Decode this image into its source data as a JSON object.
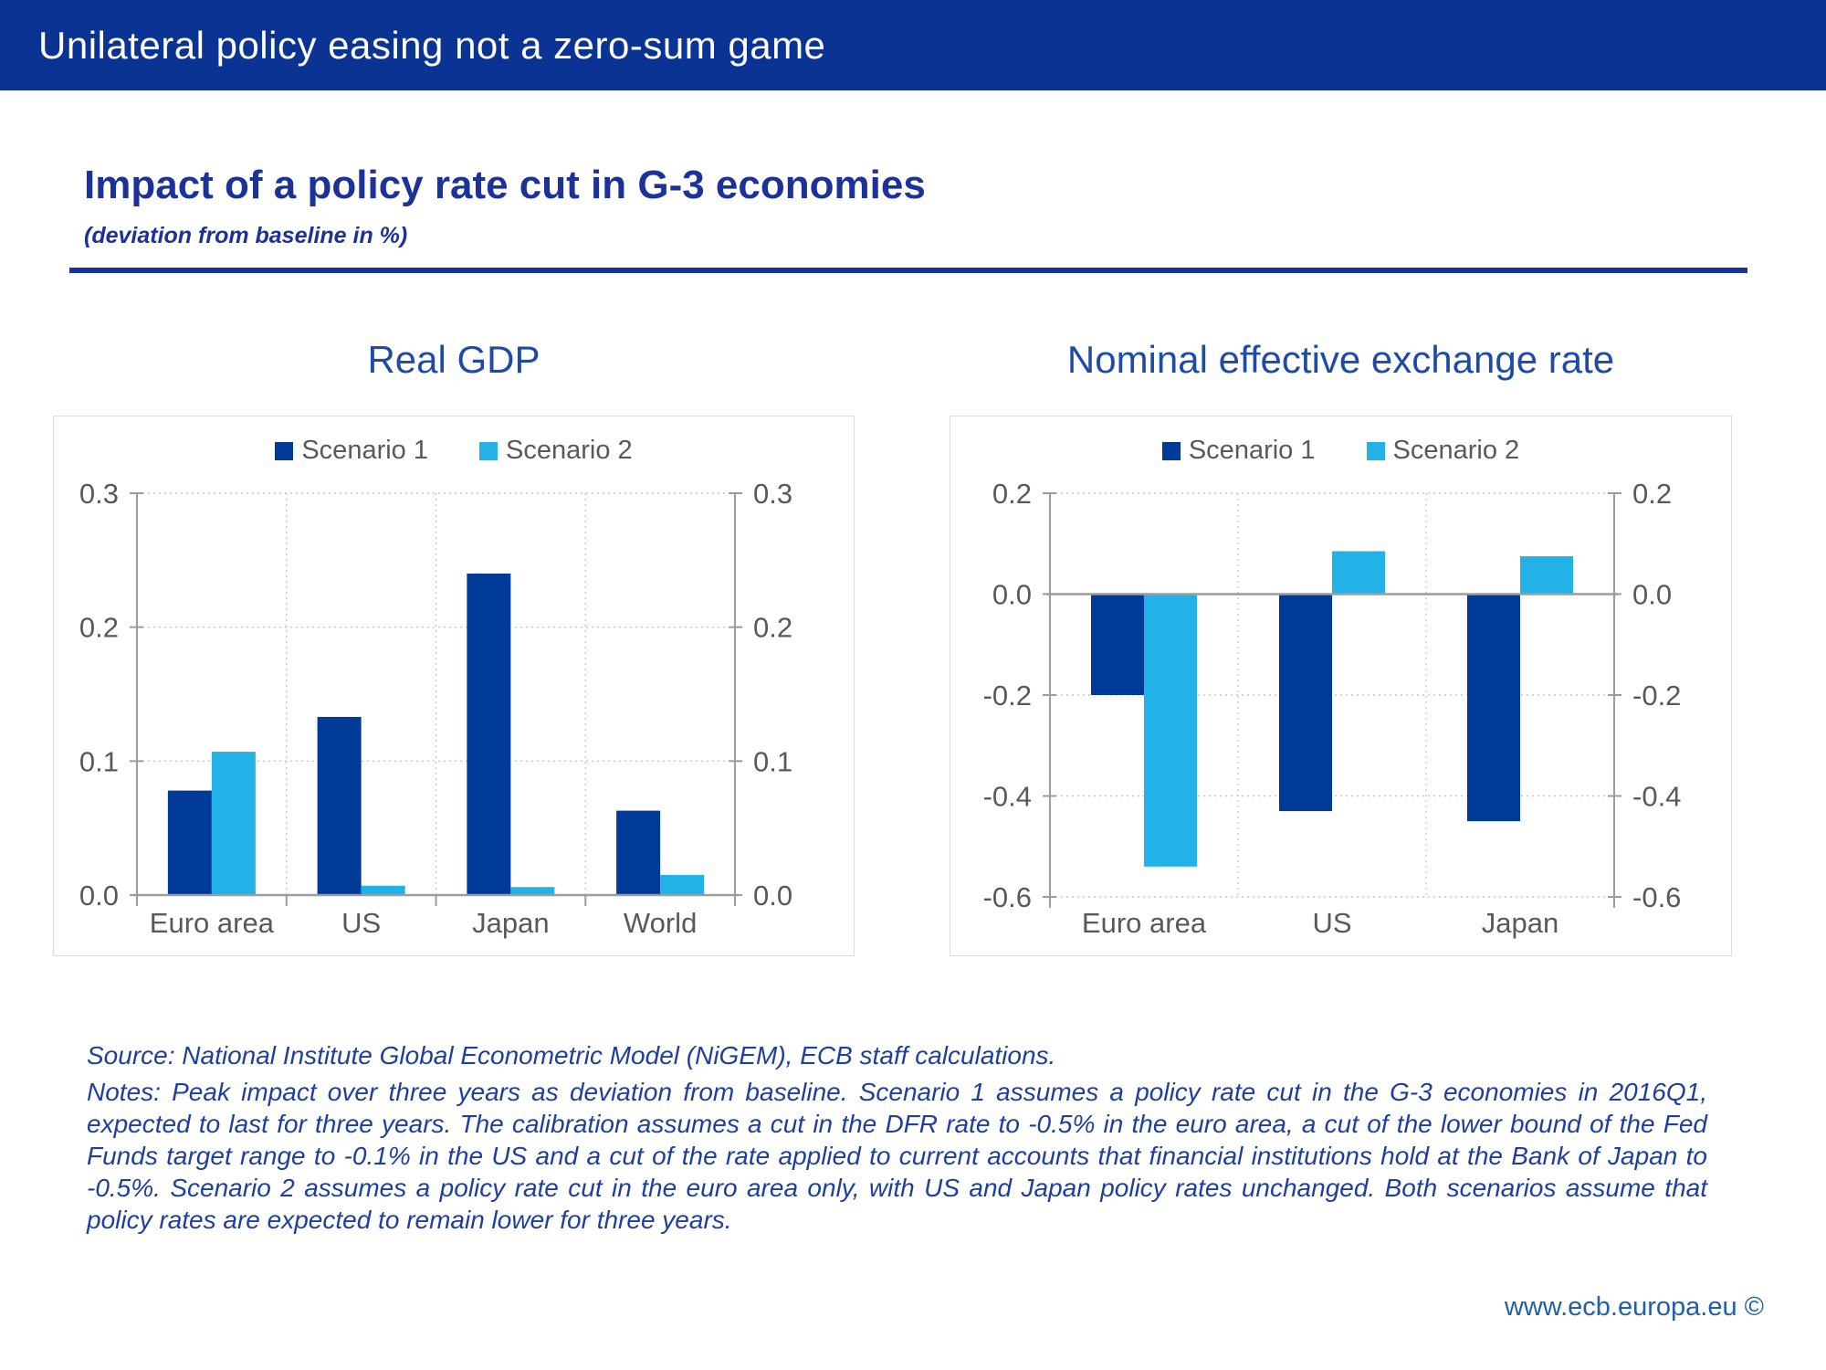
{
  "banner": {
    "title": "Unilateral policy easing not a zero-sum game"
  },
  "heading": {
    "title": "Impact of a policy rate cut in G-3 economies",
    "subtitle": "(deviation from baseline in %)"
  },
  "colors": {
    "banner_bg": "#0a3394",
    "heading_blue": "#1c3299",
    "chart_title_blue": "#1e4ba8",
    "scenario1": "#003a99",
    "scenario2": "#23b2e7",
    "axis_text": "#595959",
    "footnote_blue": "#1e3fa0",
    "footer_link": "#2060a8"
  },
  "chart_data": [
    {
      "type": "bar",
      "title": "Real GDP",
      "categories": [
        "Euro area",
        "US",
        "Japan",
        "World"
      ],
      "series": [
        {
          "name": "Scenario 1",
          "color": "#003a99",
          "values": [
            0.078,
            0.133,
            0.24,
            0.063
          ]
        },
        {
          "name": "Scenario 2",
          "color": "#23b2e7",
          "values": [
            0.107,
            0.007,
            0.006,
            0.015
          ]
        }
      ],
      "ylim": [
        0.0,
        0.3
      ],
      "yticks": [
        0.3,
        0.2,
        0.1,
        0.0
      ],
      "grid": true,
      "legend_position": "top",
      "y_axis_sides": "both"
    },
    {
      "type": "bar",
      "title": "Nominal effective exchange rate",
      "categories": [
        "Euro area",
        "US",
        "Japan"
      ],
      "series": [
        {
          "name": "Scenario 1",
          "color": "#003a99",
          "values": [
            -0.2,
            -0.43,
            -0.45
          ]
        },
        {
          "name": "Scenario 2",
          "color": "#23b2e7",
          "values": [
            -0.54,
            0.085,
            0.075
          ]
        }
      ],
      "ylim": [
        -0.6,
        0.2
      ],
      "yticks": [
        0.2,
        0.0,
        -0.2,
        -0.4,
        -0.6
      ],
      "grid": true,
      "legend_position": "top",
      "y_axis_sides": "both"
    }
  ],
  "footnote": {
    "source": "Source: National Institute Global Econometric Model (NiGEM), ECB staff calculations.",
    "notes": "Notes: Peak impact over three years as deviation from baseline. Scenario 1 assumes a policy rate cut in the G-3 economies in 2016Q1, expected to last for three years. The calibration assumes a cut in the DFR rate to -0.5% in the euro area, a cut of the lower bound of the Fed Funds target range to -0.1% in the US and a cut of the rate applied to current accounts that financial institutions hold at the Bank of Japan to -0.5%. Scenario 2 assumes a policy rate cut in the euro area only, with US and Japan policy rates unchanged. Both scenarios assume that policy rates are expected to remain lower for three years."
  },
  "footer": {
    "url": "www.ecb.europa.eu ©"
  }
}
